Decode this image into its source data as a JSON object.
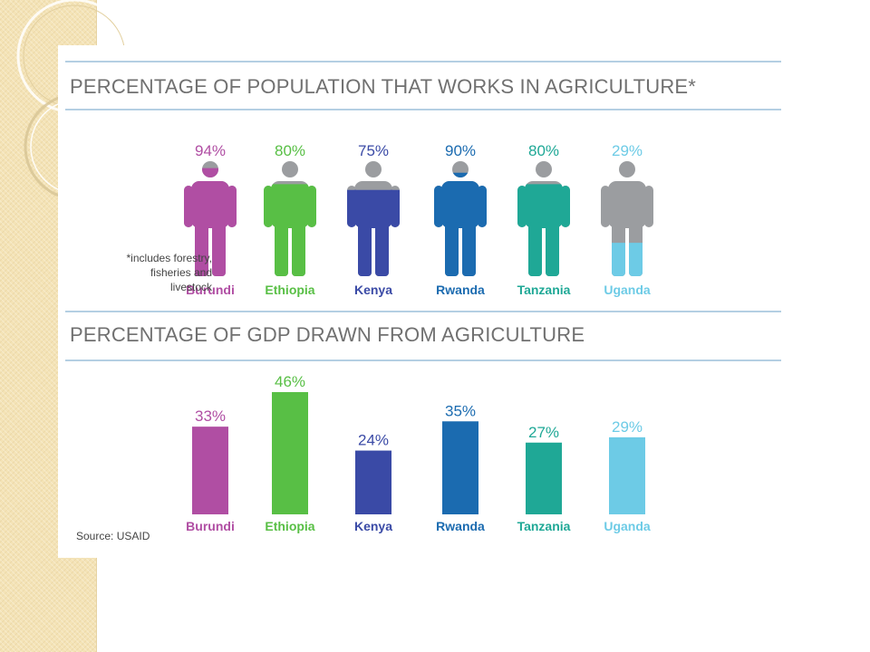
{
  "chart_data": [
    {
      "type": "bar",
      "title": "PERCENTAGE OF POPULATION THAT WORKS IN AGRICULTURE*",
      "categories": [
        "Burundi",
        "Ethiopia",
        "Kenya",
        "Rwanda",
        "Tanzania",
        "Uganda"
      ],
      "values": [
        94,
        80,
        75,
        90,
        80,
        29
      ],
      "value_labels": [
        "94%",
        "80%",
        "75%",
        "90%",
        "80%",
        "29%"
      ],
      "ylim": [
        0,
        100
      ],
      "footnote": "*includes forestry, fisheries and livestock"
    },
    {
      "type": "bar",
      "title": "PERCENTAGE OF GDP DRAWN FROM AGRICULTURE",
      "categories": [
        "Burundi",
        "Ethiopia",
        "Kenya",
        "Rwanda",
        "Tanzania",
        "Uganda"
      ],
      "values": [
        33,
        46,
        24,
        35,
        27,
        29
      ],
      "value_labels": [
        "33%",
        "46%",
        "24%",
        "35%",
        "27%",
        "29%"
      ],
      "ylim": [
        0,
        46
      ]
    }
  ],
  "colors": {
    "Burundi": "#b04ea3",
    "Ethiopia": "#58bf45",
    "Kenya": "#3a4aa6",
    "Rwanda": "#1b6bb0",
    "Tanzania": "#1fa896",
    "Uganda": "#6dcbe6",
    "unfilled": "#9b9da0"
  },
  "headings": {
    "population": "PERCENTAGE OF POPULATION THAT WORKS IN AGRICULTURE*",
    "gdp": "PERCENTAGE OF GDP DRAWN FROM AGRICULTURE"
  },
  "footnote_lines": [
    "*includes forestry,",
    "fisheries and",
    "livestock"
  ],
  "source": "Source: USAID"
}
